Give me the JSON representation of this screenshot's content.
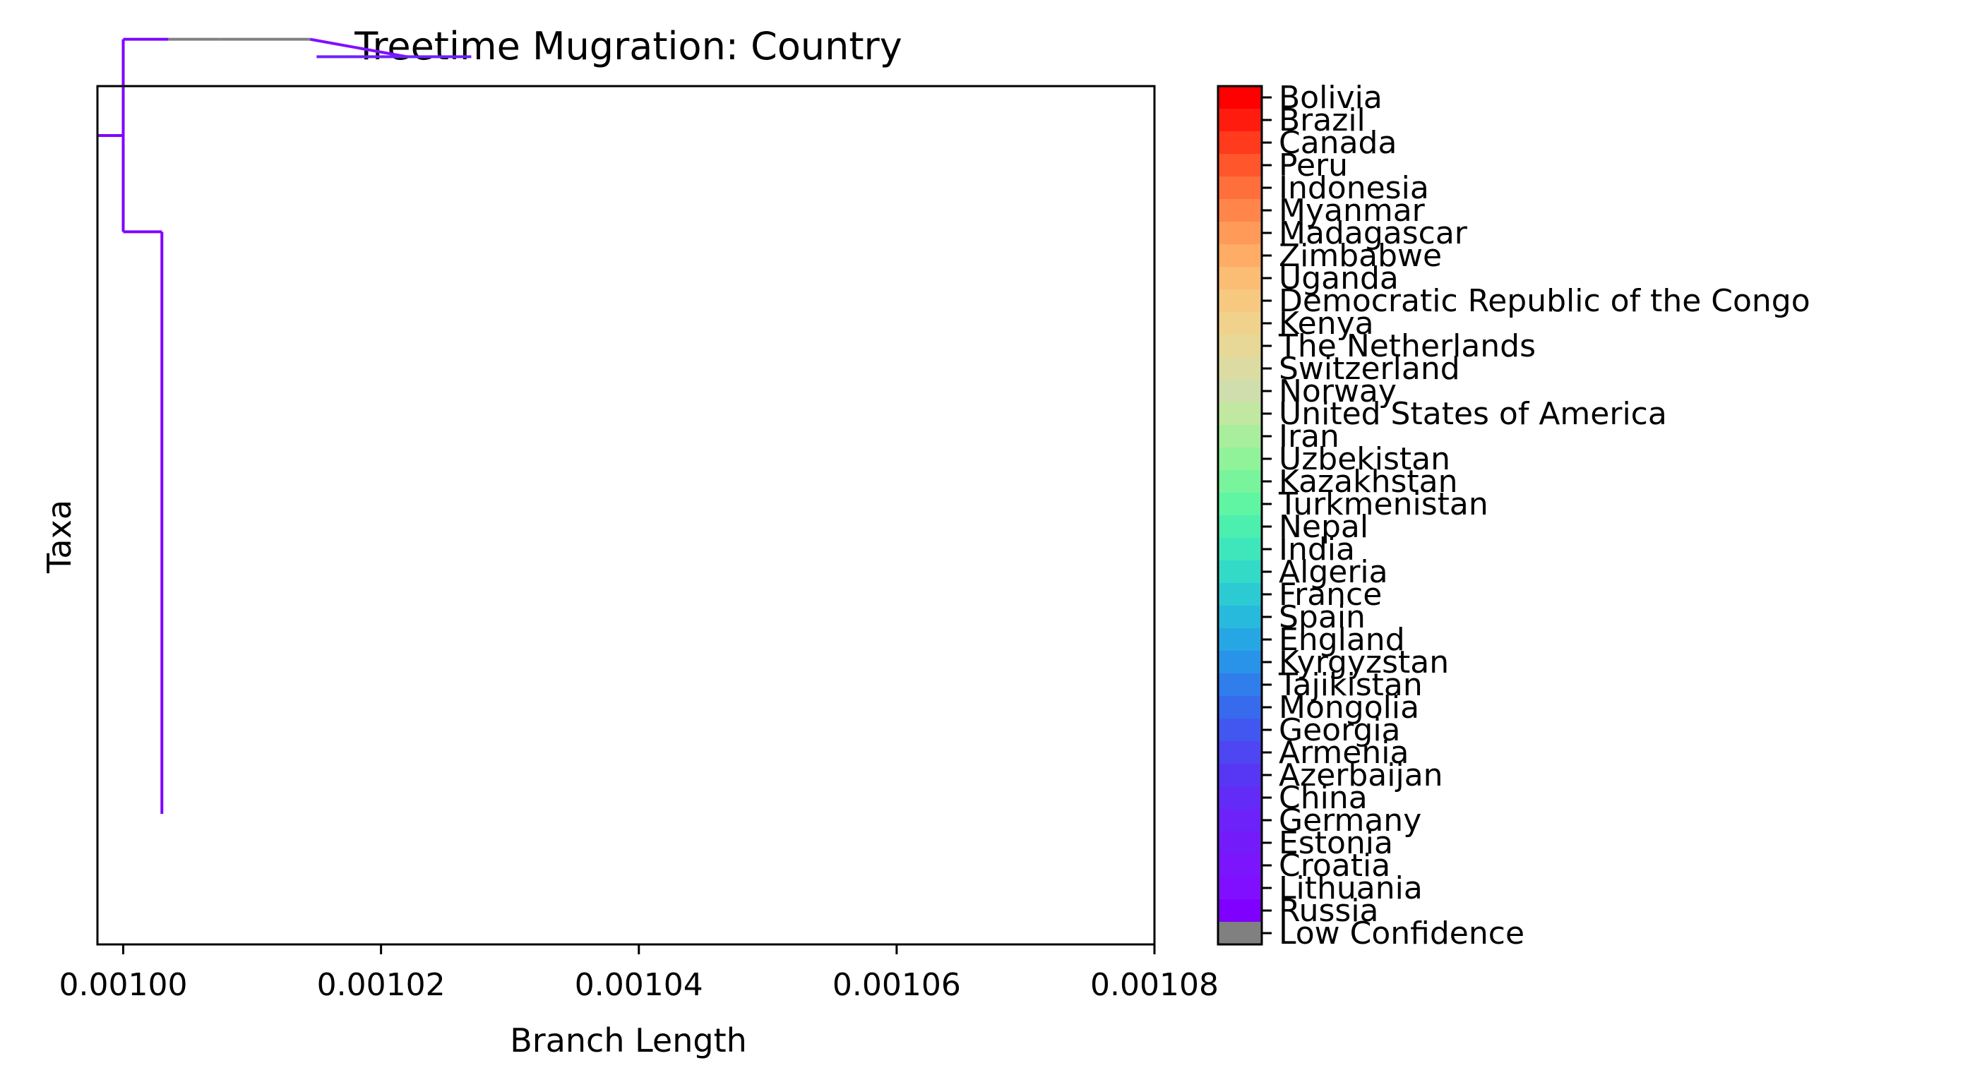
{
  "chart_data": {
    "type": "phylogenetic-tree",
    "title": "Treetime Mugration: Country",
    "xlabel": "Branch Length",
    "ylabel": "Taxa",
    "xlim": [
      0.000998,
      0.00108
    ],
    "xticks": [
      "0.00100",
      "0.00102",
      "0.00104",
      "0.00106",
      "0.00108"
    ],
    "xtick_values": [
      0.001,
      0.00102,
      0.00104,
      0.00106,
      0.00108
    ],
    "grid": false,
    "colorbar": {
      "placement": "right",
      "labels": [
        "Bolivia",
        "Brazil",
        "Canada",
        "Peru",
        "Indonesia",
        "Myanmar",
        "Madagascar",
        "Zimbabwe",
        "Uganda",
        "Democratic Republic of the Congo",
        "Kenya",
        "The Netherlands",
        "Switzerland",
        "Norway",
        "United States of America",
        "Iran",
        "Uzbekistan",
        "Kazakhstan",
        "Turkmenistan",
        "Nepal",
        "India",
        "Algeria",
        "France",
        "Spain",
        "England",
        "Kyrgyzstan",
        "Tajikistan",
        "Mongolia",
        "Georgia",
        "Armenia",
        "Azerbaijan",
        "China",
        "Germany",
        "Estonia",
        "Croatia",
        "Lithuania",
        "Russia",
        "Low Confidence"
      ],
      "colors": [
        "#ff0000",
        "#ff1c0e",
        "#ff3a1d",
        "#ff562c",
        "#ff6f3b",
        "#ff854a",
        "#ff9a58",
        "#feac66",
        "#fbbc73",
        "#f6c880",
        "#f0d28c",
        "#e7d897",
        "#dcdca2",
        "#cfdeac",
        "#c0dcb5",
        "#b0d7bd",
        "#9ed0c4",
        "#8bc6ca",
        "#76bad0",
        "#60acd4",
        "#4a9bd8",
        "#3389db",
        "#2476dd",
        "#2b62e4",
        "#3450e8",
        "#3c40ea",
        "#4432ed",
        "#4c26ef",
        "#5320f1",
        "#5a1cf2",
        "#601af3",
        "#661af4",
        "#6c1af4",
        "#721af5",
        "#781af6",
        "#7f1af7",
        "#8000ff",
        "#808080"
      ],
      "ordered_colors": [
        "#ff0000",
        "#ff1c0e",
        "#ff3a1d",
        "#ff562c",
        "#ff6f3b",
        "#ff854a",
        "#ff9a58",
        "#feac66",
        "#fbbc73",
        "#f6c880",
        "#f0d28c",
        "#e7d897",
        "#dcdca2",
        "#cfdeac",
        "#c0e8a0",
        "#a8ee9c",
        "#90f39a",
        "#78f59c",
        "#60f5a3",
        "#4cefae",
        "#3ee6bb",
        "#33dac8",
        "#2ccbd4",
        "#28badd",
        "#26a7e4",
        "#2893e9",
        "#2f7eec",
        "#386aee",
        "#4257f0",
        "#4d46f2",
        "#5837f4",
        "#632bf6",
        "#6c22f8",
        "#741bfa",
        "#7b15fc",
        "#800fff",
        "#8000ff",
        "#808080"
      ]
    },
    "branches": [
      {
        "y0": 0,
        "y1": 0,
        "x0": 0.000998,
        "x1": 0.001,
        "c": "Russia"
      },
      {
        "y0": -22,
        "y1": 22,
        "x0": 0.001,
        "x1": 0.001,
        "c": "Russia"
      },
      {
        "y0": -22,
        "y1": -22,
        "x0": 0.001,
        "x1": 0.0010035,
        "c": "Russia"
      },
      {
        "y0": -22,
        "y1": -22,
        "x0": 0.0010035,
        "x1": 0.0010075,
        "c": "Low Confidence"
      },
      {
        "y0": -22,
        "y1": -22,
        "x0": 0.0010075,
        "x1": 0.0010145,
        "c": "Low Confidence"
      },
      {
        "y0": -22,
        "y1": -18,
        "x0": 0.0010145,
        "x1": 0.001022,
        "c": "Lithuania"
      },
      {
        "y0": -18,
        "y1": -18,
        "x0": 0.001015,
        "x1": 0.001027,
        "c": "Germany"
      },
      {
        "y0": 22,
        "y1": 22,
        "x0": 0.001,
        "x1": 0.001003,
        "c": "Russia"
      },
      {
        "y0": 22,
        "y1": 155,
        "x0": 0.001003,
        "x1": 0.001003,
        "c": "Russia"
      }
    ]
  }
}
